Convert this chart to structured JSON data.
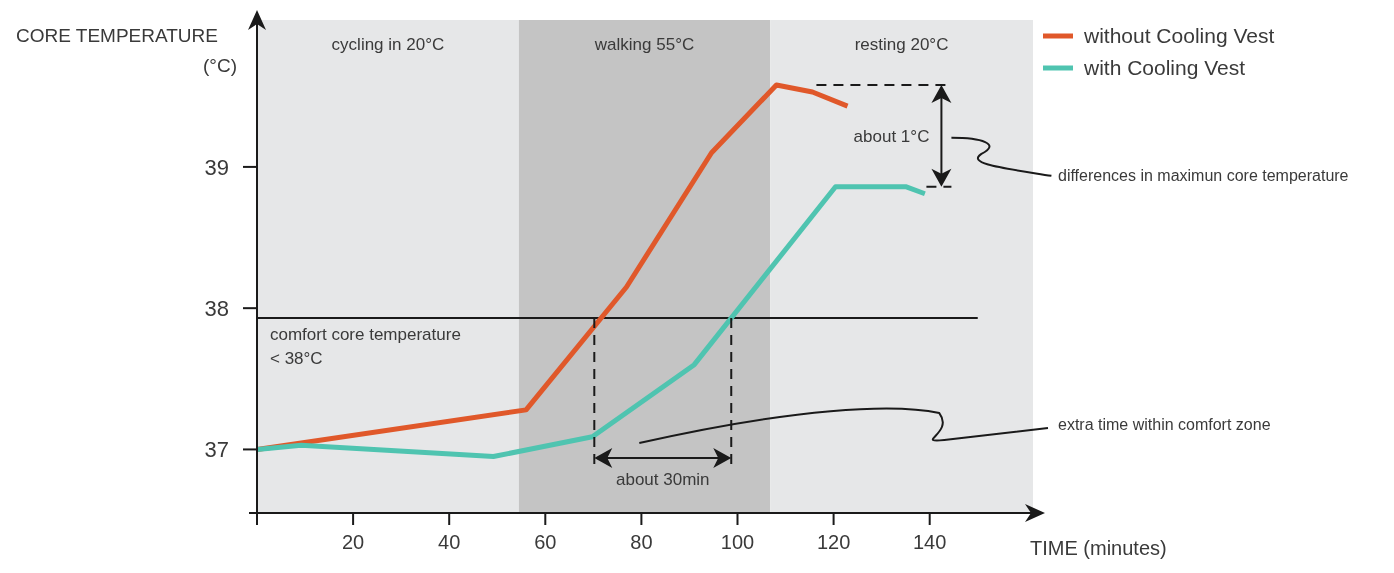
{
  "chart_data": {
    "type": "line",
    "xlabel": "TIME (minutes)",
    "ylabel": "CORE TEMPERATURE\n(°C)",
    "xlim": [
      0,
      161.5
    ],
    "xticks": [
      {
        "value": 0,
        "label": null
      },
      20,
      40,
      60,
      80,
      100,
      120,
      140
    ],
    "ylim": [
      36.55,
      40.04
    ],
    "yticks": [
      37,
      38,
      39
    ],
    "series": [
      {
        "name": "without Cooling Vest",
        "color": "#e0582a",
        "x": [
          0,
          56,
          76.9,
          94.6,
          108.1,
          115.6,
          122.9
        ],
        "values": [
          37.0,
          37.28,
          38.15,
          39.1,
          39.58,
          39.53,
          39.43
        ]
      },
      {
        "name": "with Cooling Vest",
        "color": "#4fc4b0",
        "x": [
          0,
          9.2,
          49.2,
          69.8,
          91,
          120.4,
          135,
          139
        ],
        "values": [
          37.0,
          37.03,
          36.95,
          37.09,
          37.6,
          38.86,
          38.86,
          38.81
        ]
      }
    ],
    "bands": [
      {
        "axis": "x",
        "from": 0,
        "to": 54.5,
        "label": "cycling in 20°C",
        "color": "#e6e7e8"
      },
      {
        "axis": "x",
        "from": 54.5,
        "to": 106.8,
        "label": "walking 55°C",
        "color": "#c4c4c4"
      },
      {
        "axis": "x",
        "from": 106.8,
        "to": 161.5,
        "label": "resting 20°C",
        "color": "#e6e7e8"
      }
    ],
    "ref_lines": [
      {
        "axis": "y",
        "value": 37.93,
        "label": "comfort core temperature\n< 38°C",
        "color": "#1a1a1a"
      }
    ],
    "annotations": [
      {
        "text": "about 30min",
        "x": 70.2,
        "y": 37.93
      },
      "about 1°C",
      "differences in maximun core temperature",
      "extra time within comfort zone"
    ],
    "legend": "top right",
    "grid": false,
    "marker": "none",
    "line_style": "solid"
  }
}
